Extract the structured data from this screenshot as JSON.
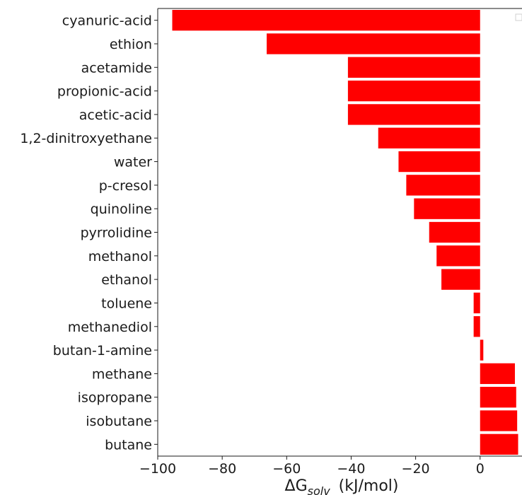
{
  "chart_data": {
    "type": "bar",
    "orientation": "horizontal",
    "categories": [
      "cyanuric-acid",
      "ethion",
      "acetamide",
      "propionic-acid",
      "acetic-acid",
      "1,2-dinitroxyethane",
      "water",
      "p-cresol",
      "quinoline",
      "pyrrolidine",
      "methanol",
      "ethanol",
      "toluene",
      "methanediol",
      "butan-1-amine",
      "methane",
      "isopropane",
      "isobutane",
      "butane"
    ],
    "values": [
      -95.5,
      -66.2,
      -41.0,
      -41.0,
      -41.0,
      -31.6,
      -25.3,
      -22.9,
      -20.5,
      -15.8,
      -13.5,
      -12.0,
      -2.0,
      -2.0,
      1.0,
      10.8,
      11.2,
      11.5,
      11.8
    ],
    "title": "",
    "xlabel": {
      "prefix": "ΔG",
      "subscript": "solv",
      "suffix": "(kJ/mol)"
    },
    "ylabel": "",
    "xlim": [
      -100,
      13
    ],
    "xticks": [
      -100,
      -80,
      -60,
      -40,
      -20,
      0
    ],
    "xtick_labels": [
      "−100",
      "−80",
      "−60",
      "−40",
      "−20",
      "0"
    ],
    "grid": false,
    "legend": "top-right (empty)",
    "bar_color": "#ff0000"
  }
}
